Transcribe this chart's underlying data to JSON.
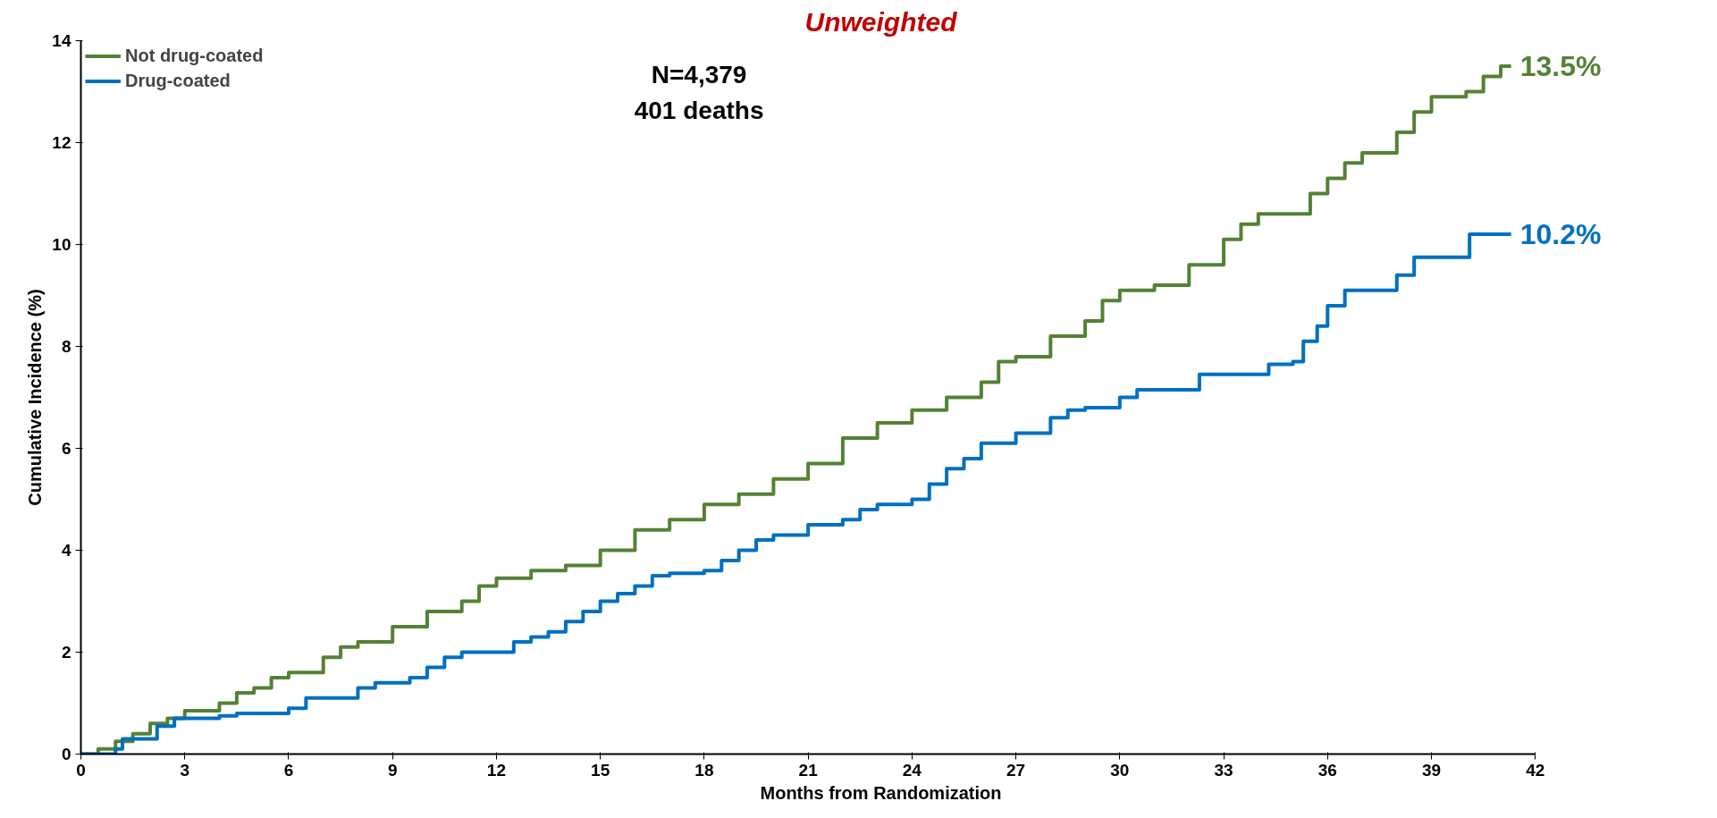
{
  "chart_data": {
    "type": "step",
    "title": "Unweighted",
    "xlabel": "Months from Randomization",
    "ylabel": "Cumulative Incidence (%)",
    "xlim": [
      0,
      42
    ],
    "ylim": [
      0,
      14
    ],
    "xticks": [
      0,
      3,
      6,
      9,
      12,
      15,
      18,
      21,
      24,
      27,
      30,
      33,
      36,
      39,
      42
    ],
    "yticks": [
      0,
      2,
      4,
      6,
      8,
      10,
      12,
      14
    ],
    "grid": false,
    "legend": "top left",
    "series": [
      {
        "name": "Not drug-coated",
        "color": "#548235",
        "x": [
          0,
          0.5,
          1,
          1.5,
          2,
          2.5,
          3,
          4,
          4.5,
          5,
          5.5,
          6,
          7,
          7.5,
          8,
          9,
          10,
          11,
          11.5,
          12,
          13,
          14,
          15,
          16,
          17,
          18,
          19,
          20,
          21,
          22,
          23,
          24,
          25,
          26,
          26.5,
          27,
          28,
          29,
          29.5,
          30,
          31,
          32,
          33,
          33.5,
          34,
          35,
          35.5,
          36,
          36.5,
          37,
          38,
          38.5,
          39,
          40,
          40.5,
          41,
          41.3
        ],
        "values": [
          0,
          0.1,
          0.25,
          0.4,
          0.6,
          0.7,
          0.85,
          1.0,
          1.2,
          1.3,
          1.5,
          1.6,
          1.9,
          2.1,
          2.2,
          2.5,
          2.8,
          3.0,
          3.3,
          3.45,
          3.6,
          3.7,
          4.0,
          4.4,
          4.6,
          4.9,
          5.1,
          5.4,
          5.7,
          6.2,
          6.5,
          6.75,
          7.0,
          7.3,
          7.7,
          7.8,
          8.2,
          8.5,
          8.9,
          9.1,
          9.2,
          9.6,
          10.1,
          10.4,
          10.6,
          10.6,
          11.0,
          11.3,
          11.6,
          11.8,
          12.2,
          12.6,
          12.9,
          13.0,
          13.3,
          13.5,
          13.5
        ]
      },
      {
        "name": "Drug-coated",
        "color": "#0070c0",
        "x": [
          0,
          1,
          1.2,
          2,
          2.2,
          2.7,
          4,
          4.5,
          6,
          6.5,
          8,
          8.5,
          9.5,
          10,
          10.5,
          11,
          12,
          12.5,
          13,
          13.5,
          14,
          14.5,
          15,
          15.5,
          16,
          16.5,
          17,
          18,
          18.5,
          19,
          19.5,
          20,
          21,
          22,
          22.5,
          23,
          24,
          24.5,
          25,
          25.5,
          26,
          27,
          28,
          28.5,
          29,
          30,
          30.5,
          32,
          32.3,
          34,
          34.3,
          35,
          35.3,
          35.7,
          36,
          36.5,
          37.5,
          38,
          38.5,
          40,
          40.1,
          41.3
        ],
        "values": [
          0,
          0.1,
          0.3,
          0.3,
          0.55,
          0.7,
          0.75,
          0.8,
          0.9,
          1.1,
          1.3,
          1.4,
          1.5,
          1.7,
          1.9,
          2.0,
          2.0,
          2.2,
          2.3,
          2.4,
          2.6,
          2.8,
          3.0,
          3.15,
          3.3,
          3.5,
          3.55,
          3.6,
          3.8,
          4.0,
          4.2,
          4.3,
          4.5,
          4.6,
          4.8,
          4.9,
          5.0,
          5.3,
          5.6,
          5.8,
          6.1,
          6.3,
          6.6,
          6.75,
          6.8,
          7.0,
          7.15,
          7.15,
          7.45,
          7.45,
          7.65,
          7.7,
          8.1,
          8.4,
          8.8,
          9.1,
          9.1,
          9.4,
          9.75,
          9.75,
          10.2,
          10.2
        ]
      }
    ],
    "annotations": [
      "N=4,379",
      "401 deaths",
      {
        "text": "13.5%",
        "x": 41.3,
        "y": 13.5
      },
      {
        "text": "10.2%",
        "x": 41.3,
        "y": 10.2
      }
    ]
  }
}
